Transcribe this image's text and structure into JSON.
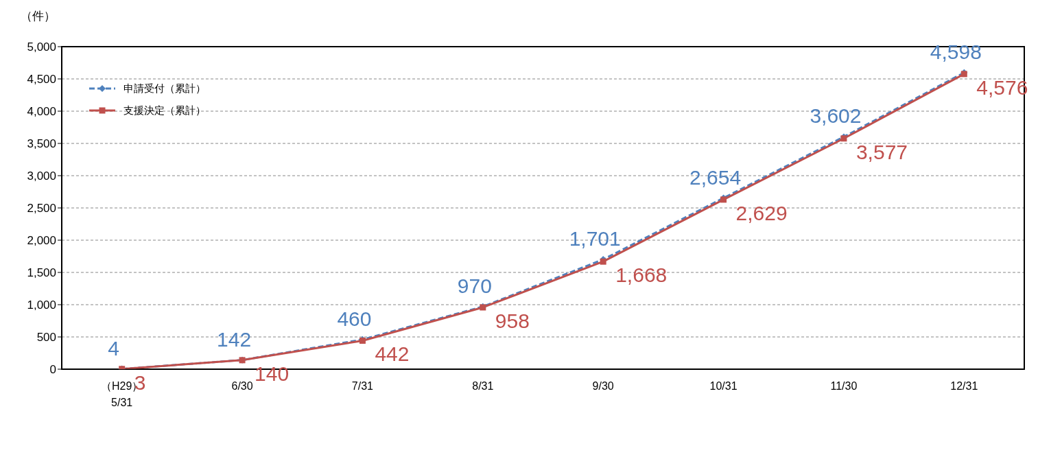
{
  "chart_data": {
    "type": "line",
    "ylabel": "（件）",
    "categories": [
      "（H29）\n5/31",
      "6/30",
      "7/31",
      "8/31",
      "9/30",
      "10/31",
      "11/30",
      "12/31"
    ],
    "series": [
      {
        "name": "申請受付（累計）",
        "color": "#4f81bd",
        "line_style": "dashed",
        "marker": "diamond",
        "values": [
          4,
          142,
          460,
          970,
          1701,
          2654,
          3602,
          4598
        ],
        "value_labels": [
          "4",
          "142",
          "460",
          "970",
          "1,701",
          "2,654",
          "3,602",
          "4,598"
        ]
      },
      {
        "name": "支援決定（累計）",
        "color": "#c0504d",
        "line_style": "solid",
        "marker": "square",
        "values": [
          3,
          140,
          442,
          958,
          1668,
          2629,
          3577,
          4576
        ],
        "value_labels": [
          "3",
          "140",
          "442",
          "958",
          "1,668",
          "2,629",
          "3,577",
          "4,576"
        ]
      }
    ],
    "ylim": [
      0,
      5000
    ],
    "yticks": [
      {
        "value": 0,
        "label": "0"
      },
      {
        "value": 500,
        "label": "500"
      },
      {
        "value": 1000,
        "label": "1,000"
      },
      {
        "value": 1500,
        "label": "1,500"
      },
      {
        "value": 2000,
        "label": "2,000"
      },
      {
        "value": 2500,
        "label": "2,500"
      },
      {
        "value": 3000,
        "label": "3,000"
      },
      {
        "value": 3500,
        "label": "3,500"
      },
      {
        "value": 4000,
        "label": "4,000"
      },
      {
        "value": 4500,
        "label": "4,500"
      },
      {
        "value": 5000,
        "label": "5,000"
      }
    ],
    "grid": "y",
    "legend": "top left"
  }
}
